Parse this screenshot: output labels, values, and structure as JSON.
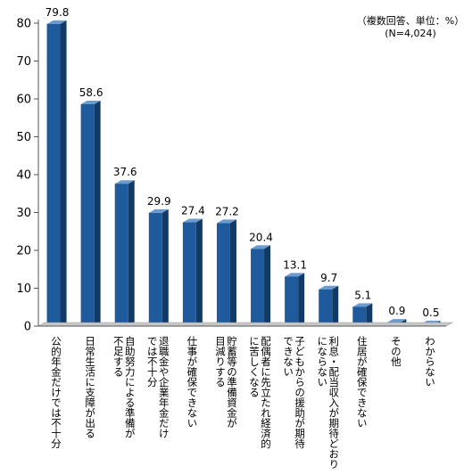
{
  "chart_data": {
    "type": "bar",
    "categories": [
      "公的年金だけでは不十分",
      "日常生活に支障が出る",
      "自助努力による準備が不足する",
      "退職金や企業年金だけでは不十分",
      "仕事が確保できない",
      "貯蓄等の準備資金が目減りする",
      "配偶者に先立たれ経済的に苦しくなる",
      "子どもからの援助が期待できない",
      "利息・配当収入が期待どおりにならない",
      "住居が確保できない",
      "その他",
      "わからない"
    ],
    "category_lines": [
      [
        "公的年金だけでは不十分"
      ],
      [
        "日常生活に支障が出る"
      ],
      [
        "自助努力による準備が",
        "不足する"
      ],
      [
        "退職金や企業年金だけ",
        "では不十分"
      ],
      [
        "仕事が確保できない"
      ],
      [
        "貯蓄等の準備資金が",
        "目減りする"
      ],
      [
        "配偶者に先立たれ経済的",
        "に苦しくなる"
      ],
      [
        "子どもからの援助が期待",
        "できない"
      ],
      [
        "利息・配当収入が期待どおり",
        "にならない"
      ],
      [
        "住居が確保できない"
      ],
      [
        "その他"
      ],
      [
        "わからない"
      ]
    ],
    "values": [
      79.8,
      58.6,
      37.6,
      29.9,
      27.4,
      27.2,
      20.4,
      13.1,
      9.7,
      5.1,
      0.9,
      0.5
    ],
    "value_labels": [
      "79.8",
      "58.6",
      "37.6",
      "29.9",
      "27.4",
      "27.2",
      "20.4",
      "13.1",
      "9.7",
      "5.1",
      "0.9",
      "0.5"
    ],
    "yticks": [
      "0",
      "10",
      "20",
      "30",
      "40",
      "50",
      "60",
      "70",
      "80"
    ],
    "ylim": [
      0,
      80
    ],
    "annotation_lines": [
      "（複数回答、単位：%）",
      "(N=4,024)"
    ],
    "colors": {
      "bar_front": "#1f5a9c",
      "bar_side": "#123a66",
      "bar_top": "#6c9bd0",
      "floor_top": "#c8c8c8",
      "axis": "#555555"
    }
  }
}
